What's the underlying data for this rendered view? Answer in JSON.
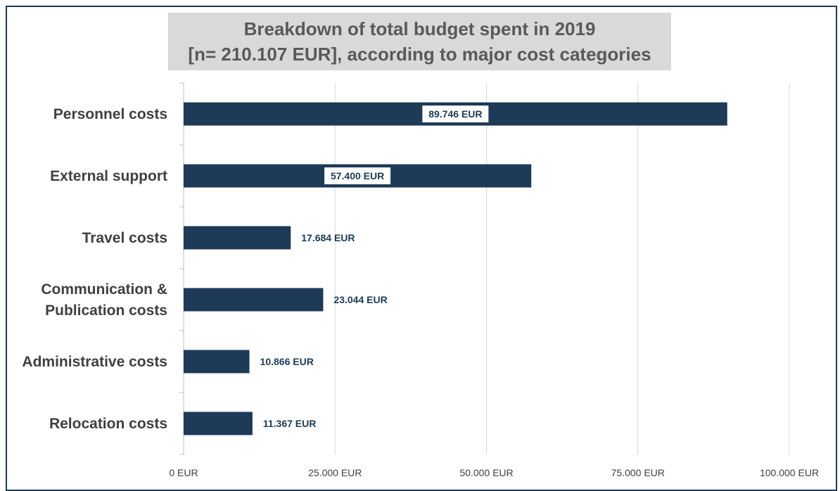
{
  "chart_data": {
    "type": "bar",
    "orientation": "horizontal",
    "title_lines": [
      "Breakdown of total budget spent in 2019",
      "[n= 210.107 EUR], according to major cost categories"
    ],
    "categories": [
      [
        "Personnel costs"
      ],
      [
        "External support"
      ],
      [
        "Travel costs"
      ],
      [
        "Communication &",
        "Publication costs"
      ],
      [
        "Administrative costs"
      ],
      [
        "Relocation costs"
      ]
    ],
    "values": [
      89746,
      57400,
      17684,
      23044,
      10866,
      11367
    ],
    "value_labels": [
      "89.746 EUR",
      "57.400 EUR",
      "17.684 EUR",
      "23.044 EUR",
      "10.866 EUR",
      "11.367 EUR"
    ],
    "label_inside": [
      true,
      true,
      false,
      false,
      false,
      false
    ],
    "xlim": [
      0,
      100000
    ],
    "xticks": [
      0,
      25000,
      50000,
      75000,
      100000
    ],
    "xtick_labels": [
      "0 EUR",
      "25.000 EUR",
      "50.000 EUR",
      "75.000 EUR",
      "100.000 EUR"
    ],
    "grid": true,
    "colors": {
      "bar": "#1d3a57",
      "grid": "#d9d9d9",
      "title_bg": "#d9d9d9",
      "title_text": "#595959"
    }
  }
}
